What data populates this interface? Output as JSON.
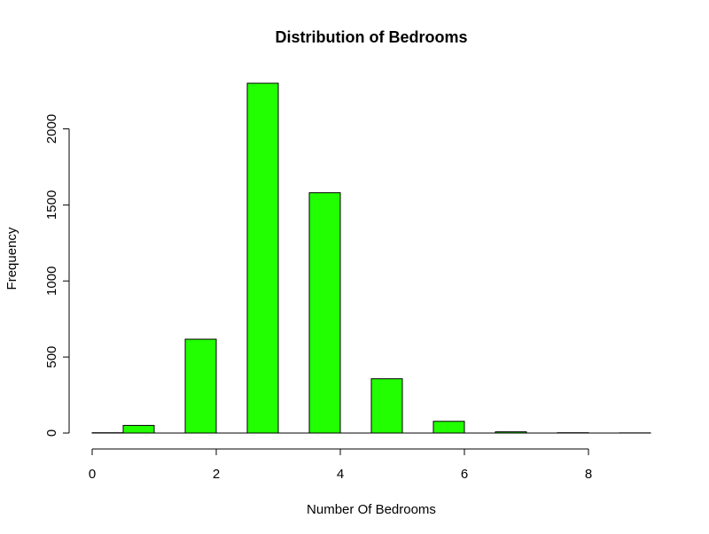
{
  "chart_data": {
    "type": "bar",
    "title": "Distribution of Bedrooms",
    "xlabel": "Number Of Bedrooms",
    "ylabel": "Frequency",
    "bar_color": "#22ff00",
    "bars": [
      {
        "x0": 0.0,
        "x1": 0.5,
        "count": 2
      },
      {
        "x0": 0.5,
        "x1": 1.0,
        "count": 50
      },
      {
        "x0": 1.5,
        "x1": 2.0,
        "count": 617
      },
      {
        "x0": 2.5,
        "x1": 3.0,
        "count": 2300
      },
      {
        "x0": 3.5,
        "x1": 4.0,
        "count": 1580
      },
      {
        "x0": 4.5,
        "x1": 5.0,
        "count": 357
      },
      {
        "x0": 5.5,
        "x1": 6.0,
        "count": 77
      },
      {
        "x0": 6.5,
        "x1": 7.0,
        "count": 8
      },
      {
        "x0": 7.5,
        "x1": 8.0,
        "count": 2
      },
      {
        "x0": 8.5,
        "x1": 9.0,
        "count": 1
      }
    ],
    "xlim": [
      0,
      9
    ],
    "ylim": [
      0,
      2300
    ],
    "x_ticks": [
      0,
      2,
      4,
      6,
      8
    ],
    "y_ticks": [
      0,
      500,
      1000,
      1500,
      2000
    ],
    "grid": false,
    "legend": "none"
  }
}
